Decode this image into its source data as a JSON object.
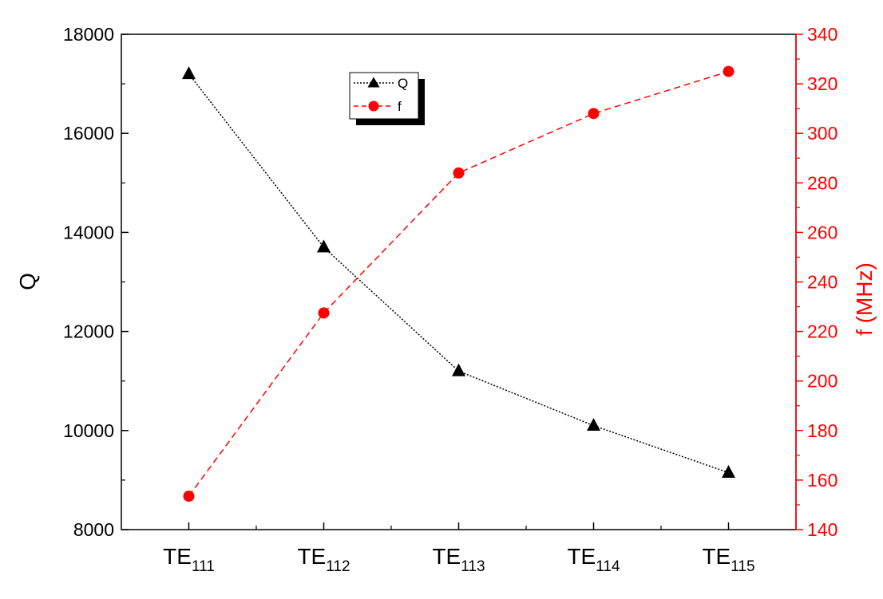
{
  "chart_data": {
    "type": "line",
    "categories": [
      {
        "main": "TE",
        "sub": "111"
      },
      {
        "main": "TE",
        "sub": "112"
      },
      {
        "main": "TE",
        "sub": "113"
      },
      {
        "main": "TE",
        "sub": "114"
      },
      {
        "main": "TE",
        "sub": "115"
      }
    ],
    "series": [
      {
        "name": "Q",
        "axis": "left",
        "color": "#000000",
        "marker": "triangle",
        "line_style": "dotted",
        "values": [
          17200,
          13700,
          11200,
          10100,
          9150
        ]
      },
      {
        "name": "f",
        "axis": "right",
        "color": "#ff0000",
        "marker": "circle",
        "line_style": "dashed",
        "values": [
          153.5,
          227.5,
          284,
          308,
          325
        ]
      }
    ],
    "y_left": {
      "label": "Q",
      "lim": [
        8000,
        18000
      ],
      "ticks": [
        8000,
        10000,
        12000,
        14000,
        16000,
        18000
      ],
      "color": "#000000"
    },
    "y_right": {
      "label": "f (MHz)",
      "lim": [
        140,
        340
      ],
      "ticks": [
        140,
        160,
        180,
        200,
        220,
        240,
        260,
        280,
        300,
        320,
        340
      ],
      "color": "#ff0000"
    },
    "legend": {
      "position": "top-center",
      "entries": [
        "Q",
        "f"
      ]
    },
    "grid": false
  }
}
